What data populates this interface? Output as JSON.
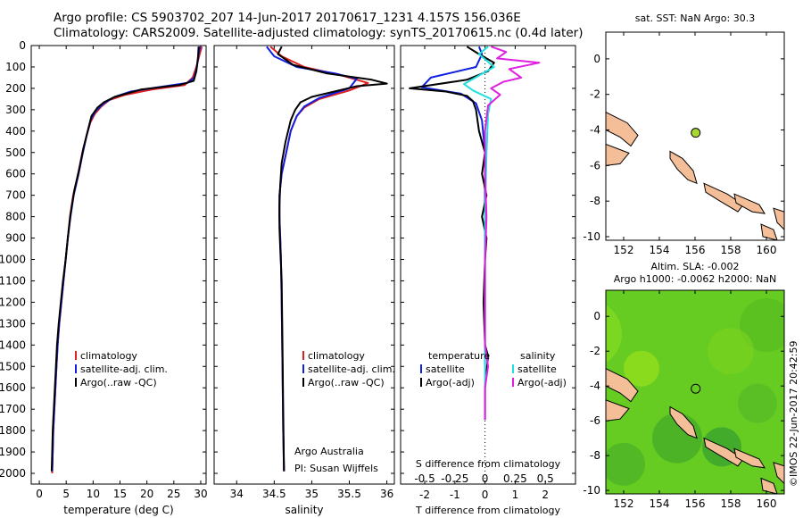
{
  "header": {
    "line1": "Argo profile: CS 5903702_207 14-Jun-2017 20170617_1231 4.157S 156.036E",
    "line2": "Climatology: CARS2009. Satellite-adjusted climatology: synTS_20170615.nc (0.4d later)"
  },
  "chart_data": [
    {
      "type": "line",
      "panel": "temperature",
      "xlabel": "temperature (deg C)",
      "ylabel": "",
      "xlim": [
        -1.5,
        31
      ],
      "ylim": [
        2050,
        0
      ],
      "xticks": [
        0,
        5,
        10,
        15,
        20,
        25,
        30
      ],
      "yticks": [
        0,
        100,
        200,
        300,
        400,
        500,
        600,
        700,
        800,
        900,
        1000,
        1100,
        1200,
        1300,
        1400,
        1500,
        1600,
        1700,
        1800,
        1900,
        2000
      ],
      "legend": [
        "climatology",
        "satellite-adj. clim.",
        "Argo(..raw -QC)"
      ],
      "series": [
        {
          "name": "climatology",
          "color": "#e02020",
          "points": [
            [
              30.2,
              5
            ],
            [
              29.8,
              40
            ],
            [
              29.2,
              100
            ],
            [
              28.5,
              150
            ],
            [
              27,
              185
            ],
            [
              21,
              205
            ],
            [
              16,
              230
            ],
            [
              13,
              255
            ],
            [
              11.5,
              285
            ],
            [
              10.3,
              320
            ],
            [
              9.5,
              360
            ],
            [
              8.8,
              420
            ],
            [
              8,
              500
            ],
            [
              7.2,
              600
            ],
            [
              6.3,
              700
            ],
            [
              5.7,
              800
            ],
            [
              5.3,
              900
            ],
            [
              4.9,
              1000
            ],
            [
              4.5,
              1100
            ],
            [
              4.1,
              1200
            ],
            [
              3.7,
              1300
            ],
            [
              3.4,
              1400
            ],
            [
              3.2,
              1500
            ],
            [
              3,
              1600
            ],
            [
              2.8,
              1700
            ],
            [
              2.6,
              1800
            ],
            [
              2.5,
              1900
            ],
            [
              2.4,
              2000
            ]
          ]
        },
        {
          "name": "satellite-adj. clim.",
          "color": "#1020e0",
          "points": [
            [
              29.9,
              5
            ],
            [
              29.6,
              40
            ],
            [
              29.3,
              100
            ],
            [
              28.8,
              150
            ],
            [
              27.5,
              175
            ],
            [
              22,
              195
            ],
            [
              17,
              215
            ],
            [
              14,
              240
            ],
            [
              12,
              270
            ],
            [
              10.5,
              305
            ],
            [
              9.6,
              345
            ],
            [
              8.9,
              410
            ],
            [
              8.1,
              500
            ],
            [
              7.3,
              600
            ],
            [
              6.4,
              700
            ],
            [
              5.8,
              800
            ],
            [
              5.3,
              900
            ],
            [
              4.9,
              1000
            ],
            [
              4.5,
              1100
            ],
            [
              4.1,
              1200
            ],
            [
              3.7,
              1300
            ],
            [
              3.4,
              1400
            ],
            [
              3.2,
              1500
            ],
            [
              3,
              1600
            ],
            [
              2.8,
              1700
            ],
            [
              2.6,
              1800
            ],
            [
              2.5,
              1900
            ],
            [
              2.4,
              1990
            ]
          ]
        },
        {
          "name": "Argo(..raw -QC)",
          "color": "#000000",
          "points": [
            [
              29.6,
              5
            ],
            [
              29.5,
              50
            ],
            [
              29.2,
              120
            ],
            [
              28.7,
              165
            ],
            [
              26,
              185
            ],
            [
              19,
              205
            ],
            [
              14,
              240
            ],
            [
              12,
              265
            ],
            [
              10.8,
              290
            ],
            [
              9.7,
              330
            ],
            [
              9,
              400
            ],
            [
              8.2,
              480
            ],
            [
              7.4,
              580
            ],
            [
              6.5,
              680
            ],
            [
              5.8,
              790
            ],
            [
              5.3,
              900
            ],
            [
              4.9,
              1000
            ],
            [
              4.4,
              1100
            ],
            [
              4,
              1200
            ],
            [
              3.6,
              1300
            ],
            [
              3.3,
              1400
            ],
            [
              3.1,
              1500
            ],
            [
              2.9,
              1600
            ],
            [
              2.7,
              1700
            ],
            [
              2.5,
              1800
            ],
            [
              2.4,
              1900
            ],
            [
              2.3,
              1990
            ]
          ]
        }
      ]
    },
    {
      "type": "line",
      "panel": "salinity",
      "xlabel": "salinity",
      "xlim": [
        33.7,
        36.1
      ],
      "ylim": [
        2050,
        0
      ],
      "xticks": [
        34,
        34.5,
        35,
        35.5,
        36
      ],
      "legend": [
        "climatology",
        "satellite-adj. clim.",
        "Argo(..raw -QC)"
      ],
      "annotation": [
        "Argo Australia",
        "PI: Susan Wijffels"
      ],
      "series": [
        {
          "name": "climatology",
          "color": "#e02020",
          "points": [
            [
              34.45,
              5
            ],
            [
              34.6,
              50
            ],
            [
              34.9,
              100
            ],
            [
              35.4,
              140
            ],
            [
              35.75,
              175
            ],
            [
              35.5,
              210
            ],
            [
              35.1,
              250
            ],
            [
              34.9,
              290
            ],
            [
              34.8,
              330
            ],
            [
              34.72,
              400
            ],
            [
              34.66,
              500
            ],
            [
              34.6,
              600
            ],
            [
              34.57,
              700
            ],
            [
              34.57,
              800
            ],
            [
              34.58,
              900
            ],
            [
              34.59,
              1000
            ],
            [
              34.6,
              1200
            ],
            [
              34.61,
              1500
            ],
            [
              34.62,
              1800
            ],
            [
              34.63,
              1990
            ]
          ]
        },
        {
          "name": "satellite-adj. clim.",
          "color": "#1020e0",
          "points": [
            [
              34.4,
              5
            ],
            [
              34.5,
              50
            ],
            [
              34.8,
              100
            ],
            [
              35.3,
              130
            ],
            [
              35.6,
              155
            ],
            [
              35.5,
              200
            ],
            [
              35.1,
              245
            ],
            [
              34.9,
              285
            ],
            [
              34.8,
              330
            ],
            [
              34.72,
              400
            ],
            [
              34.66,
              500
            ],
            [
              34.6,
              600
            ],
            [
              34.57,
              700
            ],
            [
              34.57,
              800
            ],
            [
              34.58,
              900
            ],
            [
              34.59,
              1000
            ],
            [
              34.6,
              1200
            ],
            [
              34.61,
              1500
            ],
            [
              34.62,
              1800
            ],
            [
              34.63,
              1990
            ]
          ]
        },
        {
          "name": "Argo(..raw -QC)",
          "color": "#000000",
          "points": [
            [
              34.6,
              5
            ],
            [
              34.55,
              40
            ],
            [
              34.75,
              90
            ],
            [
              35.2,
              130
            ],
            [
              35.8,
              160
            ],
            [
              36,
              178
            ],
            [
              35.6,
              190
            ],
            [
              35.3,
              215
            ],
            [
              35,
              240
            ],
            [
              34.85,
              265
            ],
            [
              34.78,
              300
            ],
            [
              34.72,
              350
            ],
            [
              34.65,
              450
            ],
            [
              34.6,
              550
            ],
            [
              34.58,
              650
            ],
            [
              34.57,
              750
            ],
            [
              34.57,
              850
            ],
            [
              34.58,
              950
            ],
            [
              34.6,
              1100
            ],
            [
              34.61,
              1400
            ],
            [
              34.62,
              1700
            ],
            [
              34.63,
              1990
            ]
          ]
        }
      ]
    },
    {
      "type": "line",
      "panel": "difference",
      "xlabel": "T difference from climatology",
      "xlabel_top": "S difference from climatology",
      "xlim": [
        -2.8,
        3
      ],
      "ylim": [
        2050,
        0
      ],
      "xticks_T": [
        -2,
        -1,
        0,
        1,
        2
      ],
      "xticks_S": [
        "-0.5",
        "-0.25",
        "0",
        "0.25",
        "0.5"
      ],
      "legend_headers": [
        "temperature",
        "salinity"
      ],
      "legend": [
        "satellite",
        "Argo(-adj)",
        "satellite",
        "Argo(-adj)"
      ],
      "series": [
        {
          "name": "satellite",
          "color": "#1020e0",
          "points": [
            [
              -0.2,
              5
            ],
            [
              -0.1,
              40
            ],
            [
              -0.3,
              100
            ],
            [
              -1.8,
              150
            ],
            [
              -2.1,
              195
            ],
            [
              -0.8,
              225
            ],
            [
              -0.3,
              270
            ],
            [
              -0.1,
              350
            ],
            [
              0,
              500
            ],
            [
              0,
              800
            ],
            [
              0,
              1200
            ],
            [
              0,
              1500
            ]
          ]
        },
        {
          "name": "Argo(-adj)",
          "color": "#000000",
          "points": [
            [
              -0.6,
              5
            ],
            [
              -0.2,
              40
            ],
            [
              0.3,
              80
            ],
            [
              0.1,
              120
            ],
            [
              -0.6,
              160
            ],
            [
              -2.5,
              200
            ],
            [
              -1.3,
              215
            ],
            [
              -0.6,
              235
            ],
            [
              -0.4,
              260
            ],
            [
              -0.3,
              300
            ],
            [
              -0.2,
              400
            ],
            [
              0,
              500
            ],
            [
              -0.1,
              600
            ],
            [
              0.05,
              700
            ],
            [
              -0.1,
              800
            ],
            [
              0.05,
              900
            ],
            [
              0,
              1000
            ],
            [
              -0.05,
              1200
            ],
            [
              0,
              1400
            ],
            [
              0.1,
              1450
            ],
            [
              0,
              1600
            ],
            [
              0,
              1700
            ],
            [
              0,
              1750
            ]
          ]
        },
        {
          "name": "satellite",
          "color": "#20e0e0",
          "points": [
            [
              0.1,
              5
            ],
            [
              -0.2,
              40
            ],
            [
              0.3,
              100
            ],
            [
              -0.7,
              180
            ],
            [
              -0.4,
              210
            ],
            [
              0.2,
              250
            ],
            [
              0.1,
              320
            ],
            [
              0.05,
              500
            ],
            [
              0,
              800
            ],
            [
              0,
              1200
            ],
            [
              0,
              1500
            ],
            [
              0,
              1750
            ]
          ]
        },
        {
          "name": "Argo(-adj)",
          "color": "#e020e0",
          "points": [
            [
              0.2,
              5
            ],
            [
              0.7,
              30
            ],
            [
              0.4,
              60
            ],
            [
              1.8,
              80
            ],
            [
              0.8,
              110
            ],
            [
              1.2,
              150
            ],
            [
              0.6,
              170
            ],
            [
              0.2,
              200
            ],
            [
              0.5,
              230
            ],
            [
              0.1,
              280
            ],
            [
              0,
              400
            ],
            [
              0,
              600
            ],
            [
              0.05,
              800
            ],
            [
              0,
              1000
            ],
            [
              0,
              1200
            ],
            [
              0,
              1400
            ],
            [
              0.1,
              1500
            ],
            [
              0,
              1600
            ],
            [
              0,
              1750
            ]
          ]
        }
      ]
    },
    {
      "type": "map",
      "panel": "sst",
      "title": "sat. SST: NaN Argo: 30.3",
      "xlim": [
        151,
        161
      ],
      "ylim": [
        -10.2,
        1.5
      ],
      "xticks": [
        152,
        154,
        156,
        158,
        160
      ],
      "yticks": [
        0,
        -2,
        -4,
        -6,
        -8,
        -10
      ],
      "marker": {
        "lon": 156.036,
        "lat": -4.157
      }
    },
    {
      "type": "map",
      "panel": "sla",
      "title_line1": "Altim. SLA: -0.002",
      "title_line2": "Argo h1000: -0.0062 h2000: NaN",
      "xlim": [
        151,
        161
      ],
      "ylim": [
        -10.2,
        1.5
      ],
      "xticks": [
        152,
        154,
        156,
        158,
        160
      ],
      "yticks": [
        0,
        -2,
        -4,
        -6,
        -8,
        -10
      ],
      "marker": {
        "lon": 156.036,
        "lat": -4.157
      }
    }
  ],
  "footer": {
    "credit": "©IMOS 22-Jun-2017 20:42:59"
  },
  "colors": {
    "land": "#f4be98",
    "sla_field": "#66cc22",
    "marker": "#a8d830"
  }
}
